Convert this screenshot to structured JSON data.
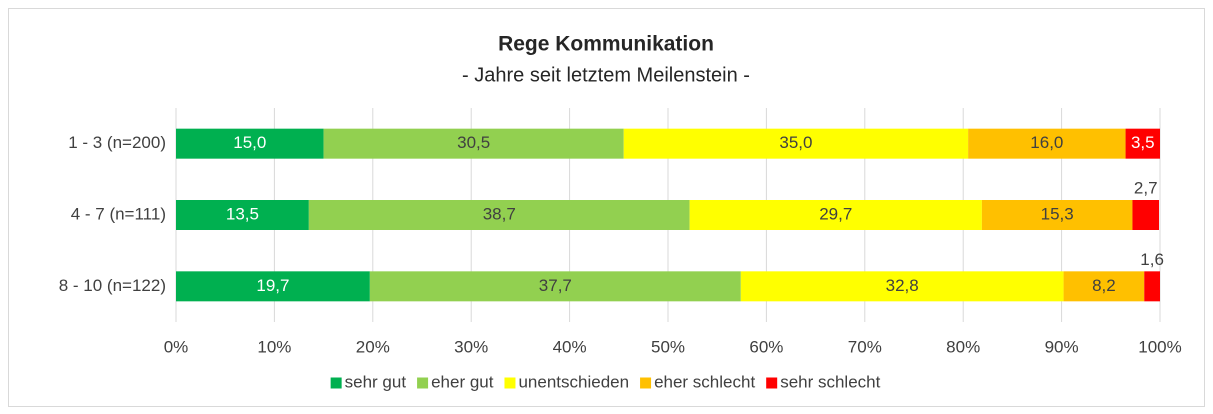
{
  "chart_data": {
    "type": "stacked_barh",
    "title": "Rege Kommunikation",
    "subtitle": "- Jahre seit letztem Meilenstein -",
    "categories": [
      "1 - 3 (n=200)",
      "4 - 7 (n=111)",
      "8 - 10 (n=122)"
    ],
    "series": [
      {
        "name": "sehr gut",
        "color": "#00b050",
        "values": [
          15.0,
          13.5,
          19.7
        ],
        "value_labels": [
          "15,0",
          "13,5",
          "19,7"
        ]
      },
      {
        "name": "eher gut",
        "color": "#92d050",
        "values": [
          30.5,
          38.7,
          37.7
        ],
        "value_labels": [
          "30,5",
          "38,7",
          "37,7"
        ]
      },
      {
        "name": "unentschieden",
        "color": "#ffff00",
        "values": [
          35.0,
          29.7,
          32.8
        ],
        "value_labels": [
          "35,0",
          "29,7",
          "32,8"
        ]
      },
      {
        "name": "eher schlecht",
        "color": "#ffc000",
        "values": [
          16.0,
          15.3,
          8.2
        ],
        "value_labels": [
          "16,0",
          "15,3",
          "8,2"
        ]
      },
      {
        "name": "sehr schlecht",
        "color": "#ff0000",
        "values": [
          3.5,
          2.7,
          1.6
        ],
        "value_labels": [
          "3,5",
          "2,7",
          "1,6"
        ]
      }
    ],
    "xlim": [
      0,
      100
    ],
    "xticks": [
      {
        "value": 0,
        "label": "0%"
      },
      {
        "value": 10,
        "label": "10%"
      },
      {
        "value": 20,
        "label": "20%"
      },
      {
        "value": 30,
        "label": "30%"
      },
      {
        "value": 40,
        "label": "40%"
      },
      {
        "value": 50,
        "label": "50%"
      },
      {
        "value": 60,
        "label": "60%"
      },
      {
        "value": 70,
        "label": "70%"
      },
      {
        "value": 80,
        "label": "80%"
      },
      {
        "value": 90,
        "label": "90%"
      },
      {
        "value": 100,
        "label": "100%"
      }
    ],
    "grid": true,
    "legend": "bottom"
  }
}
